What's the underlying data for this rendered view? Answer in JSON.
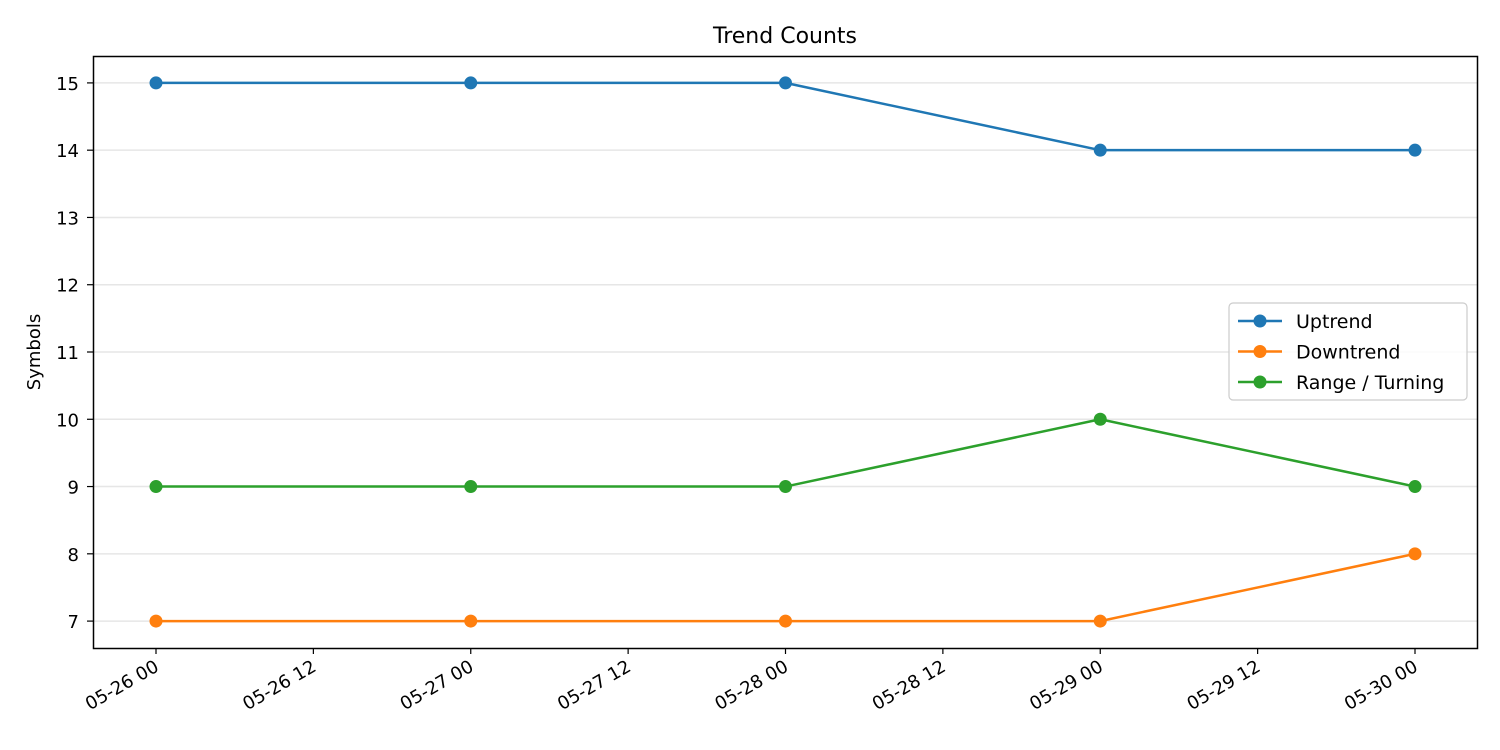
{
  "chart_data": {
    "type": "line",
    "title": "Trend Counts",
    "xlabel": "",
    "ylabel": "Symbols",
    "x": [
      "05-26 00",
      "05-27 00",
      "05-28 00",
      "05-29 00",
      "05-30 00"
    ],
    "x_ticks": [
      "05-26 00",
      "05-26 12",
      "05-27 00",
      "05-27 12",
      "05-28 00",
      "05-28 12",
      "05-29 00",
      "05-29 12",
      "05-30 00"
    ],
    "y_ticks": [
      7,
      8,
      9,
      10,
      11,
      12,
      13,
      14,
      15
    ],
    "ylim": [
      6.6,
      15.4
    ],
    "grid": "horizontal",
    "legend_position": "center-right",
    "series": [
      {
        "name": "Uptrend",
        "color": "#1f77b4",
        "values": [
          15,
          15,
          15,
          14,
          14
        ]
      },
      {
        "name": "Downtrend",
        "color": "#ff7f0e",
        "values": [
          7,
          7,
          7,
          7,
          8
        ]
      },
      {
        "name": "Range / Turning",
        "color": "#2ca02c",
        "values": [
          9,
          9,
          9,
          10,
          9
        ]
      }
    ]
  }
}
